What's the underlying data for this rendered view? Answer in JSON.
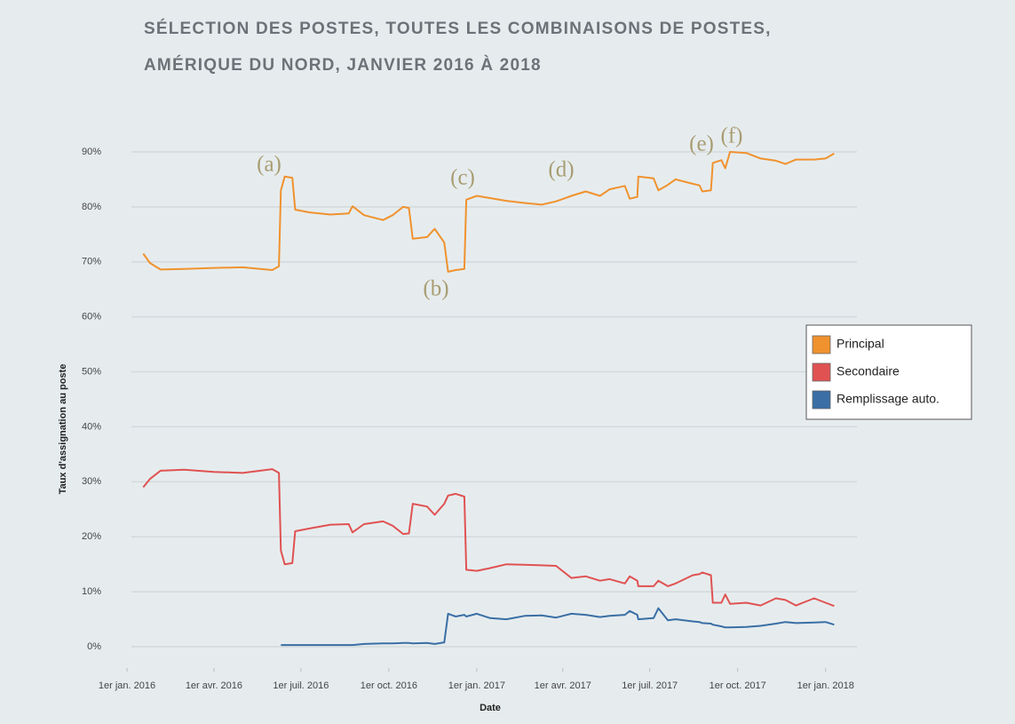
{
  "chart_data": {
    "type": "line",
    "title": [
      "SÉLECTION DES POSTES, TOUTES LES COMBINAISONS DE POSTES,",
      "AMÉRIQUE DU NORD, JANVIER 2016 À 2018"
    ],
    "x_label": "Date",
    "y_label": "Taux d'assignation au poste",
    "annotations": [
      "(a)",
      "(b)",
      "(c)",
      "(d)",
      "(e)",
      "(f)"
    ],
    "x": [
      "2016-01-18",
      "2016-01-25",
      "2016-02-05",
      "2016-03-01",
      "2016-04-01",
      "2016-05-01",
      "2016-06-01",
      "2016-06-08",
      "2016-06-10",
      "2016-06-14",
      "2016-06-22",
      "2016-06-25",
      "2016-07-10",
      "2016-08-01",
      "2016-08-20",
      "2016-08-24",
      "2016-09-05",
      "2016-09-25",
      "2016-10-05",
      "2016-10-16",
      "2016-10-22",
      "2016-10-26",
      "2016-11-10",
      "2016-11-18",
      "2016-11-28",
      "2016-12-02",
      "2016-12-10",
      "2016-12-19",
      "2016-12-21",
      "2017-01-01",
      "2017-01-15",
      "2017-02-01",
      "2017-02-20",
      "2017-03-10",
      "2017-03-25",
      "2017-04-10",
      "2017-04-25",
      "2017-05-10",
      "2017-05-20",
      "2017-06-05",
      "2017-06-10",
      "2017-06-18",
      "2017-06-19",
      "2017-07-05",
      "2017-07-10",
      "2017-07-20",
      "2017-07-28",
      "2017-08-15",
      "2017-08-22",
      "2017-08-25",
      "2017-09-03",
      "2017-09-05",
      "2017-09-14",
      "2017-09-18",
      "2017-09-23",
      "2017-10-10",
      "2017-10-25",
      "2017-11-10",
      "2017-11-20",
      "2017-12-01",
      "2017-12-20",
      "2018-01-01",
      "2018-01-10"
    ],
    "series": [
      {
        "name": "Principal",
        "color": "#f0922e",
        "values": [
          71.5,
          69.8,
          68.6,
          68.7,
          68.9,
          69,
          68.5,
          69.2,
          83,
          85.5,
          85.3,
          79.5,
          79,
          78.6,
          78.8,
          80.1,
          78.5,
          77.6,
          78.5,
          80,
          79.8,
          74.2,
          74.5,
          76,
          73.5,
          68.2,
          68.5,
          68.7,
          81.3,
          82,
          81.6,
          81.1,
          80.7,
          80.4,
          81,
          82,
          82.8,
          82,
          83.2,
          83.8,
          81.5,
          81.8,
          85.5,
          85.2,
          83,
          84,
          85,
          84.2,
          83.9,
          82.8,
          83,
          88,
          88.5,
          87,
          90,
          89.8,
          88.8,
          88.4,
          87.8,
          88.6,
          88.6,
          88.8,
          89.7
        ]
      },
      {
        "name": "Secondaire",
        "color": "#e05252",
        "values": [
          29,
          30.5,
          32,
          32.2,
          31.8,
          31.6,
          32.3,
          31.6,
          17.5,
          15,
          15.2,
          21,
          21.5,
          22.2,
          22.3,
          20.8,
          22.3,
          22.8,
          22,
          20.5,
          20.6,
          26,
          25.5,
          24,
          26,
          27.5,
          27.8,
          27.3,
          14,
          13.8,
          14.3,
          15,
          14.9,
          14.8,
          14.7,
          12.5,
          12.8,
          12,
          12.3,
          11.5,
          12.8,
          12,
          11,
          11,
          12,
          11,
          11.5,
          13,
          13.2,
          13.5,
          13,
          8,
          8,
          9.5,
          7.8,
          8,
          7.5,
          8.8,
          8.5,
          7.5,
          8.8,
          8,
          7.4
        ]
      },
      {
        "name": "Remplissage auto.",
        "color": "#3a6ea5",
        "values": [
          null,
          null,
          null,
          null,
          null,
          null,
          null,
          null,
          0.3,
          0.3,
          0.3,
          0.3,
          0.3,
          0.3,
          0.3,
          0.3,
          0.5,
          0.6,
          0.6,
          0.7,
          0.7,
          0.6,
          0.7,
          0.5,
          0.8,
          6,
          5.5,
          5.8,
          5.5,
          6,
          5.2,
          5,
          5.6,
          5.7,
          5.3,
          6,
          5.8,
          5.4,
          5.6,
          5.8,
          6.5,
          5.8,
          5,
          5.2,
          7,
          4.8,
          5,
          4.6,
          4.5,
          4.3,
          4.2,
          4,
          3.7,
          3.5,
          3.5,
          3.6,
          3.8,
          4.2,
          4.5,
          4.3,
          4.4,
          4.5,
          4
        ]
      }
    ],
    "xlim": [
      "2016-01-01",
      "2018-01-31"
    ],
    "xticks": [
      {
        "value": "2016-01-01",
        "label": "1er jan. 2016"
      },
      {
        "value": "2016-04-01",
        "label": "1er avr. 2016"
      },
      {
        "value": "2016-07-01",
        "label": "1er juil. 2016"
      },
      {
        "value": "2016-10-01",
        "label": "1er oct. 2016"
      },
      {
        "value": "2017-01-01",
        "label": "1er jan. 2017"
      },
      {
        "value": "2017-04-01",
        "label": "1er avr. 2017"
      },
      {
        "value": "2017-07-01",
        "label": "1er juil. 2017"
      },
      {
        "value": "2017-10-01",
        "label": "1er oct. 2017"
      },
      {
        "value": "2018-01-01",
        "label": "1er jan. 2018"
      }
    ],
    "ylim": [
      -3,
      95
    ],
    "yticks": [
      {
        "value": 0,
        "label": "0%"
      },
      {
        "value": 10,
        "label": "10%"
      },
      {
        "value": 20,
        "label": "20%"
      },
      {
        "value": 30,
        "label": "30%"
      },
      {
        "value": 40,
        "label": "40%"
      },
      {
        "value": 50,
        "label": "50%"
      },
      {
        "value": 60,
        "label": "60%"
      },
      {
        "value": 70,
        "label": "70%"
      },
      {
        "value": 80,
        "label": "80%"
      },
      {
        "value": 90,
        "label": "90%"
      }
    ],
    "grid": true,
    "legend": "right"
  }
}
